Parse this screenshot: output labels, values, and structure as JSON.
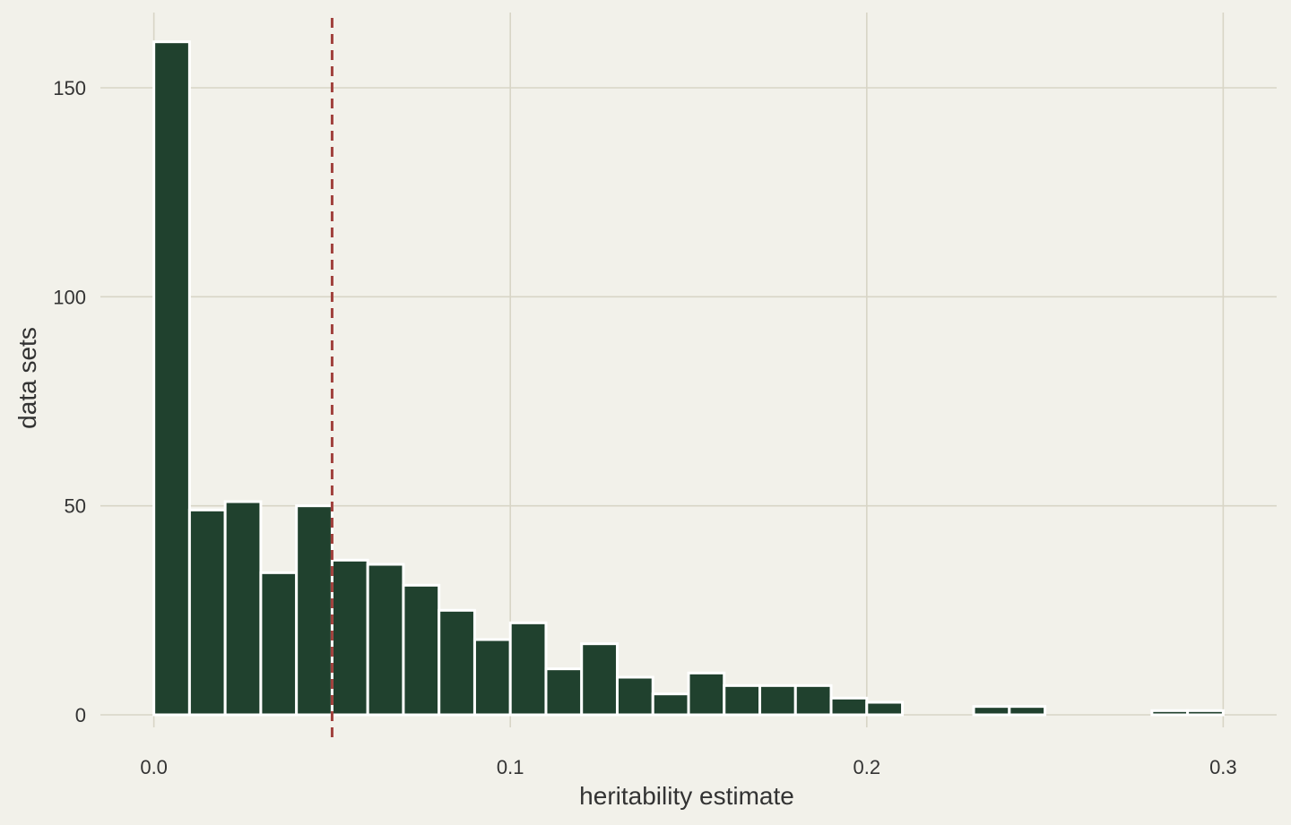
{
  "chart_data": {
    "type": "bar",
    "subtype": "histogram",
    "title": "",
    "xlabel": "heritability estimate",
    "ylabel": "data sets",
    "xlim": [
      -0.015,
      0.315
    ],
    "ylim": [
      -3,
      168
    ],
    "x_ticks": [
      0.0,
      0.1,
      0.2,
      0.3
    ],
    "x_tick_labels": [
      "0.0",
      "0.1",
      "0.2",
      "0.3"
    ],
    "y_ticks": [
      0,
      50,
      100,
      150
    ],
    "y_tick_labels": [
      "0",
      "50",
      "100",
      "150"
    ],
    "grid": true,
    "bin_width": 0.01,
    "bins": [
      {
        "x0": 0.0,
        "x1": 0.01,
        "count": 161
      },
      {
        "x0": 0.01,
        "x1": 0.02,
        "count": 49
      },
      {
        "x0": 0.02,
        "x1": 0.03,
        "count": 51
      },
      {
        "x0": 0.03,
        "x1": 0.04,
        "count": 34
      },
      {
        "x0": 0.04,
        "x1": 0.05,
        "count": 50
      },
      {
        "x0": 0.05,
        "x1": 0.06,
        "count": 37
      },
      {
        "x0": 0.06,
        "x1": 0.07,
        "count": 36
      },
      {
        "x0": 0.07,
        "x1": 0.08,
        "count": 31
      },
      {
        "x0": 0.08,
        "x1": 0.09,
        "count": 25
      },
      {
        "x0": 0.09,
        "x1": 0.1,
        "count": 18
      },
      {
        "x0": 0.1,
        "x1": 0.11,
        "count": 22
      },
      {
        "x0": 0.11,
        "x1": 0.12,
        "count": 11
      },
      {
        "x0": 0.12,
        "x1": 0.13,
        "count": 17
      },
      {
        "x0": 0.13,
        "x1": 0.14,
        "count": 9
      },
      {
        "x0": 0.14,
        "x1": 0.15,
        "count": 5
      },
      {
        "x0": 0.15,
        "x1": 0.16,
        "count": 10
      },
      {
        "x0": 0.16,
        "x1": 0.17,
        "count": 7
      },
      {
        "x0": 0.17,
        "x1": 0.18,
        "count": 7
      },
      {
        "x0": 0.18,
        "x1": 0.19,
        "count": 7
      },
      {
        "x0": 0.19,
        "x1": 0.2,
        "count": 4
      },
      {
        "x0": 0.2,
        "x1": 0.21,
        "count": 3
      },
      {
        "x0": 0.21,
        "x1": 0.22,
        "count": 0
      },
      {
        "x0": 0.22,
        "x1": 0.23,
        "count": 0
      },
      {
        "x0": 0.23,
        "x1": 0.24,
        "count": 2
      },
      {
        "x0": 0.24,
        "x1": 0.25,
        "count": 2
      },
      {
        "x0": 0.25,
        "x1": 0.26,
        "count": 0
      },
      {
        "x0": 0.26,
        "x1": 0.27,
        "count": 0
      },
      {
        "x0": 0.27,
        "x1": 0.28,
        "count": 0
      },
      {
        "x0": 0.28,
        "x1": 0.29,
        "count": 1
      },
      {
        "x0": 0.29,
        "x1": 0.3,
        "count": 1
      }
    ],
    "reference_line": {
      "x": 0.05,
      "style": "dashed",
      "color": "#a0403c"
    },
    "colors": {
      "background": "#f2f1ea",
      "bar_fill": "#20412e",
      "bar_edge": "#ffffff",
      "grid": "#d8d5c6"
    }
  }
}
